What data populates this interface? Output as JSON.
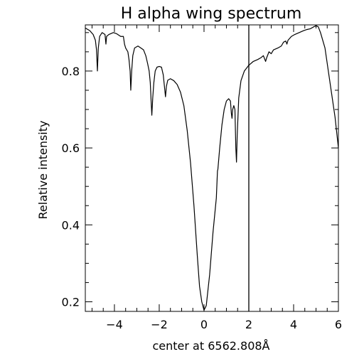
{
  "chart_data": {
    "type": "line",
    "title": "H alpha wing spectrum",
    "xlabel": "center at 6562.808Å",
    "ylabel": "Relative intensity",
    "xlim": [
      -5.3,
      6.0
    ],
    "ylim": [
      0.175,
      0.92
    ],
    "x_ticks": [
      -4,
      -2,
      0,
      2,
      4,
      6
    ],
    "x_tick_labels": [
      "−4",
      "−2",
      "0",
      "2",
      "4",
      "6"
    ],
    "y_ticks": [
      0.2,
      0.4,
      0.6,
      0.8
    ],
    "y_tick_labels": [
      "0.2",
      "0.4",
      "0.6",
      "0.8"
    ],
    "x_minor_step": 0.5,
    "y_minor_step": 0.05,
    "grid": false,
    "vertical_marker_x": 2.0,
    "series": [
      {
        "points": [
          [
            -5.3,
            0.912
          ],
          [
            -5.1,
            0.905
          ],
          [
            -4.95,
            0.895
          ],
          [
            -4.85,
            0.88
          ],
          [
            -4.8,
            0.855
          ],
          [
            -4.76,
            0.8
          ],
          [
            -4.72,
            0.86
          ],
          [
            -4.66,
            0.89
          ],
          [
            -4.55,
            0.9
          ],
          [
            -4.42,
            0.895
          ],
          [
            -4.38,
            0.87
          ],
          [
            -4.35,
            0.89
          ],
          [
            -4.25,
            0.895
          ],
          [
            -4.05,
            0.9
          ],
          [
            -3.9,
            0.897
          ],
          [
            -3.72,
            0.89
          ],
          [
            -3.6,
            0.89
          ],
          [
            -3.55,
            0.87
          ],
          [
            -3.5,
            0.86
          ],
          [
            -3.45,
            0.855
          ],
          [
            -3.4,
            0.85
          ],
          [
            -3.35,
            0.83
          ],
          [
            -3.3,
            0.8
          ],
          [
            -3.27,
            0.75
          ],
          [
            -3.23,
            0.8
          ],
          [
            -3.18,
            0.84
          ],
          [
            -3.1,
            0.86
          ],
          [
            -2.95,
            0.865
          ],
          [
            -2.82,
            0.86
          ],
          [
            -2.7,
            0.855
          ],
          [
            -2.6,
            0.84
          ],
          [
            -2.52,
            0.82
          ],
          [
            -2.45,
            0.8
          ],
          [
            -2.4,
            0.77
          ],
          [
            -2.36,
            0.72
          ],
          [
            -2.33,
            0.685
          ],
          [
            -2.29,
            0.73
          ],
          [
            -2.24,
            0.77
          ],
          [
            -2.18,
            0.8
          ],
          [
            -2.1,
            0.81
          ],
          [
            -2.0,
            0.812
          ],
          [
            -1.9,
            0.81
          ],
          [
            -1.82,
            0.79
          ],
          [
            -1.75,
            0.75
          ],
          [
            -1.72,
            0.733
          ],
          [
            -1.68,
            0.76
          ],
          [
            -1.62,
            0.776
          ],
          [
            -1.5,
            0.78
          ],
          [
            -1.35,
            0.775
          ],
          [
            -1.2,
            0.765
          ],
          [
            -1.05,
            0.745
          ],
          [
            -0.9,
            0.71
          ],
          [
            -0.75,
            0.645
          ],
          [
            -0.6,
            0.56
          ],
          [
            -0.45,
            0.45
          ],
          [
            -0.3,
            0.32
          ],
          [
            -0.2,
            0.24
          ],
          [
            -0.1,
            0.2
          ],
          [
            0.0,
            0.178
          ],
          [
            0.1,
            0.19
          ],
          [
            0.25,
            0.27
          ],
          [
            0.4,
            0.38
          ],
          [
            0.55,
            0.47
          ],
          [
            0.6,
            0.54
          ],
          [
            0.62,
            0.545
          ],
          [
            0.7,
            0.6
          ],
          [
            0.8,
            0.66
          ],
          [
            0.9,
            0.7
          ],
          [
            1.0,
            0.722
          ],
          [
            1.1,
            0.728
          ],
          [
            1.18,
            0.722
          ],
          [
            1.22,
            0.69
          ],
          [
            1.25,
            0.677
          ],
          [
            1.28,
            0.7
          ],
          [
            1.33,
            0.71
          ],
          [
            1.38,
            0.7
          ],
          [
            1.42,
            0.6
          ],
          [
            1.45,
            0.563
          ],
          [
            1.48,
            0.63
          ],
          [
            1.55,
            0.73
          ],
          [
            1.65,
            0.775
          ],
          [
            1.8,
            0.8
          ],
          [
            2.0,
            0.815
          ],
          [
            2.2,
            0.825
          ],
          [
            2.4,
            0.83
          ],
          [
            2.55,
            0.835
          ],
          [
            2.65,
            0.84
          ],
          [
            2.75,
            0.825
          ],
          [
            2.8,
            0.835
          ],
          [
            2.9,
            0.85
          ],
          [
            3.0,
            0.845
          ],
          [
            3.1,
            0.855
          ],
          [
            3.3,
            0.86
          ],
          [
            3.45,
            0.865
          ],
          [
            3.55,
            0.875
          ],
          [
            3.65,
            0.878
          ],
          [
            3.7,
            0.87
          ],
          [
            3.75,
            0.88
          ],
          [
            3.9,
            0.89
          ],
          [
            4.05,
            0.895
          ],
          [
            4.25,
            0.9
          ],
          [
            4.45,
            0.905
          ],
          [
            4.6,
            0.908
          ],
          [
            4.75,
            0.91
          ],
          [
            4.9,
            0.915
          ],
          [
            5.0,
            0.918
          ],
          [
            5.1,
            0.915
          ],
          [
            5.2,
            0.9
          ],
          [
            5.4,
            0.86
          ],
          [
            5.55,
            0.8
          ],
          [
            5.7,
            0.74
          ],
          [
            5.85,
            0.68
          ],
          [
            6.0,
            0.6
          ]
        ]
      }
    ]
  }
}
